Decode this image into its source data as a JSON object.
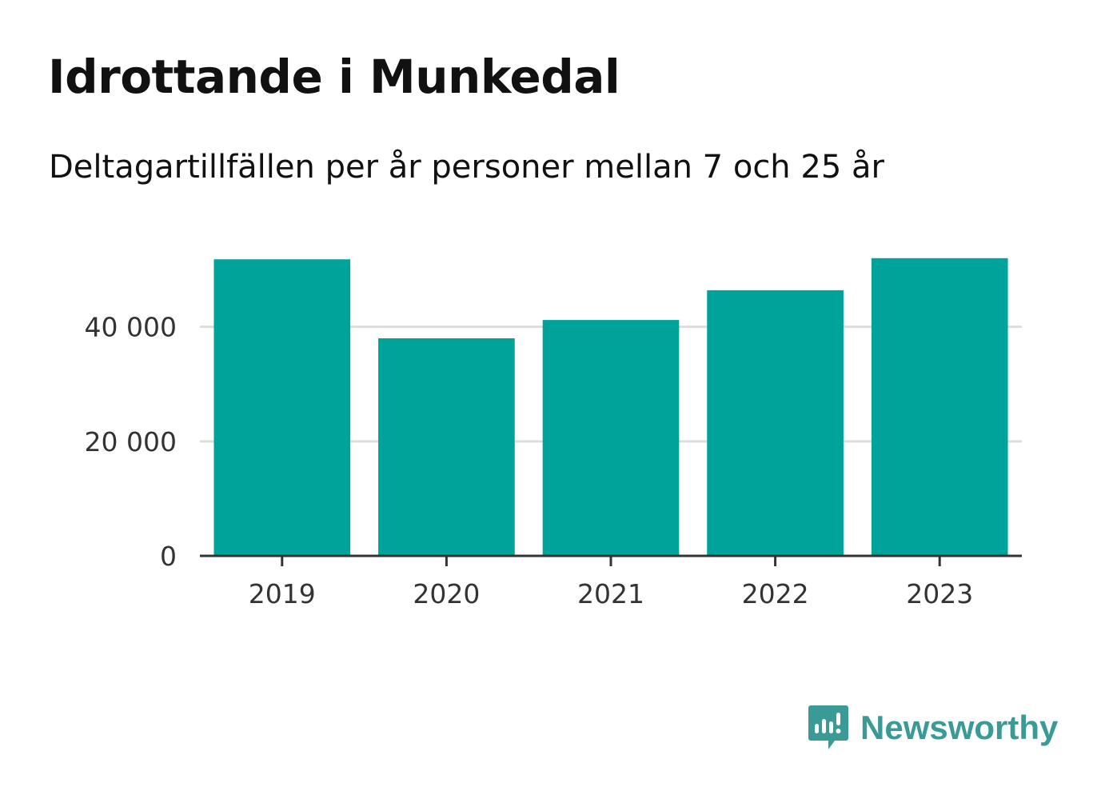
{
  "title": "Idrottande i Munkedal",
  "subtitle": "Deltagartillfällen per år personer mellan 7 och 25 år",
  "brand": {
    "name": "Newsworthy",
    "icon": "newsworthy-logo-icon",
    "color": "#3a9a96"
  },
  "chart_data": {
    "type": "bar",
    "categories": [
      "2019",
      "2020",
      "2021",
      "2022",
      "2023"
    ],
    "values": [
      51800,
      38000,
      41200,
      46400,
      52000
    ],
    "ylim": [
      0,
      57000
    ],
    "yticks": [
      0,
      20000,
      40000
    ],
    "ytick_labels": [
      "0",
      "20 000",
      "40 000"
    ],
    "bar_color": "#00a39a",
    "grid": true,
    "grid_color": "#dddddd",
    "axis_color": "#333333"
  }
}
